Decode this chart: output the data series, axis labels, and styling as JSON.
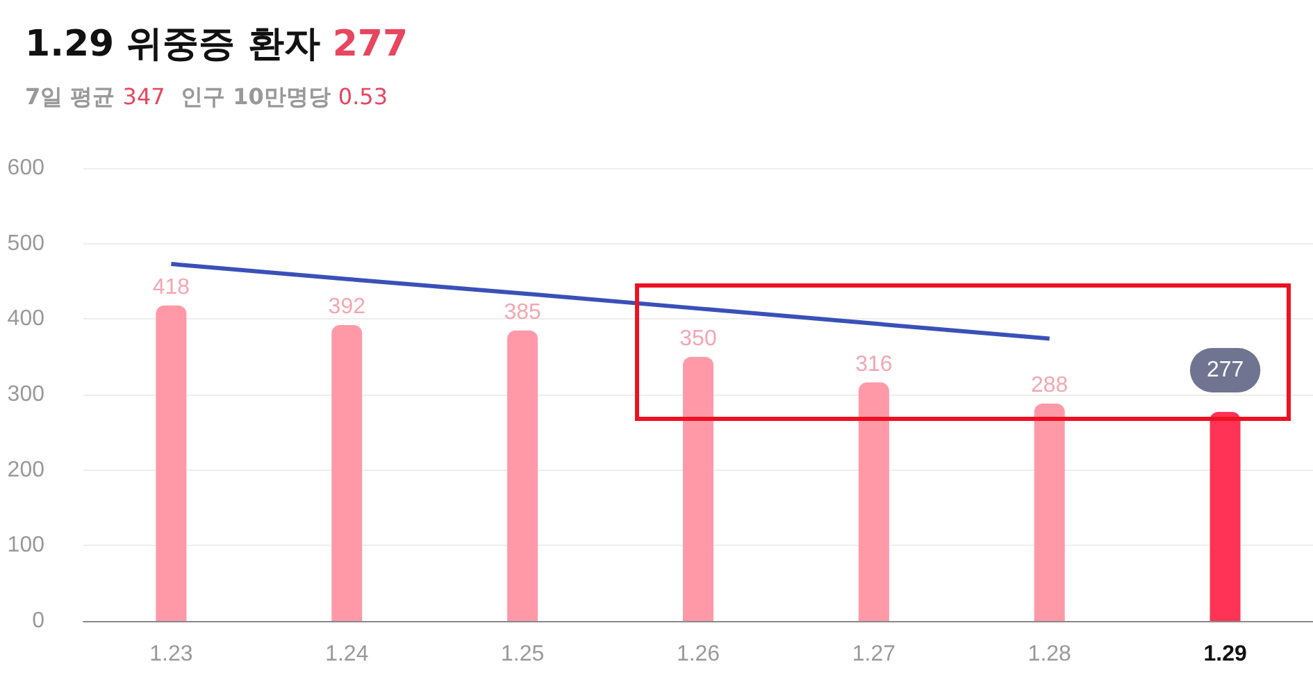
{
  "chart_data": {
    "type": "bar",
    "title": "1.29 위중증 환자 277",
    "subtitle": "7일 평균 347  인구 10만명당 0.53",
    "categories": [
      "1.23",
      "1.24",
      "1.25",
      "1.26",
      "1.27",
      "1.28",
      "1.29"
    ],
    "series": [
      {
        "colors": [
          "#ff99a8",
          "#ff99a8",
          "#ff99a8",
          "#ff99a8",
          "#ff99a8",
          "#ff99a8",
          "#ff3355"
        ],
        "values": [
          418,
          392,
          385,
          350,
          316,
          288,
          277
        ],
        "value_labels": [
          "418",
          "392",
          "385",
          "350",
          "316",
          "288",
          "277"
        ]
      },
      {
        "type": "line",
        "color": "#3a50b8",
        "values": [
          473,
          453,
          434,
          414,
          394,
          374,
          null
        ]
      }
    ],
    "ylim": [
      0,
      600
    ],
    "yticks": [
      0,
      100,
      200,
      300,
      400,
      500,
      600
    ],
    "grid": "y",
    "marker": "none"
  }
}
